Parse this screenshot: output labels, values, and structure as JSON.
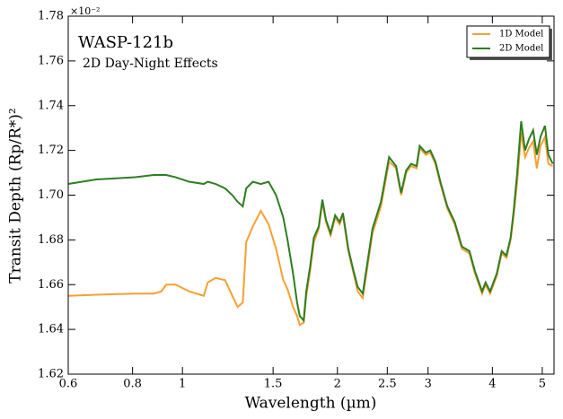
{
  "chart_data": {
    "type": "line",
    "title": "WASP-121b",
    "subtitle": "2D Day-Night Effects",
    "x_label": "Wavelength (µm)",
    "y_label": "Transit Depth (Rp/R*)²",
    "y_offset_label": "×10⁻²",
    "x_scale": "log",
    "xlim": [
      0.6,
      5.27
    ],
    "xticks": [
      0.6,
      0.8,
      1,
      1.5,
      2,
      2.5,
      3,
      4,
      5
    ],
    "ylim": [
      1.62,
      1.78
    ],
    "yticks": [
      1.62,
      1.64,
      1.66,
      1.68,
      {
        "value": 1.7,
        "label": "1.70"
      },
      1.72,
      1.74,
      1.76,
      1.78
    ],
    "legend_position": "upper right",
    "x": [
      0.6,
      0.68,
      0.81,
      0.88,
      0.91,
      0.93,
      0.97,
      1.03,
      1.1,
      1.12,
      1.16,
      1.21,
      1.25,
      1.28,
      1.31,
      1.33,
      1.37,
      1.42,
      1.47,
      1.52,
      1.57,
      1.6,
      1.64,
      1.67,
      1.69,
      1.72,
      1.74,
      1.77,
      1.8,
      1.84,
      1.87,
      1.9,
      1.94,
      1.98,
      2.02,
      2.05,
      2.1,
      2.15,
      2.19,
      2.24,
      2.34,
      2.43,
      2.52,
      2.6,
      2.66,
      2.72,
      2.78,
      2.85,
      2.89,
      2.97,
      3.03,
      3.1,
      3.17,
      3.27,
      3.38,
      3.49,
      3.61,
      3.7,
      3.82,
      3.88,
      3.96,
      4.08,
      4.17,
      4.26,
      4.34,
      4.4,
      4.47,
      4.55,
      4.63,
      4.71,
      4.8,
      4.88,
      4.96,
      5.06,
      5.14,
      5.24
    ],
    "series": [
      {
        "name": "1D Model",
        "color": "#f5a033",
        "values": [
          1.655,
          1.6555,
          1.656,
          1.656,
          1.657,
          1.66,
          1.66,
          1.657,
          1.655,
          1.661,
          1.663,
          1.662,
          1.655,
          1.65,
          1.652,
          1.679,
          1.686,
          1.693,
          1.687,
          1.676,
          1.662,
          1.658,
          1.65,
          1.646,
          1.642,
          1.643,
          1.655,
          1.666,
          1.679,
          1.685,
          1.697,
          1.688,
          1.682,
          1.69,
          1.687,
          1.691,
          1.675,
          1.665,
          1.657,
          1.654,
          1.683,
          1.695,
          1.715,
          1.712,
          1.7,
          1.71,
          1.713,
          1.712,
          1.721,
          1.718,
          1.719,
          1.714,
          1.705,
          1.694,
          1.687,
          1.676,
          1.674,
          1.665,
          1.656,
          1.66,
          1.656,
          1.664,
          1.674,
          1.672,
          1.68,
          1.691,
          1.706,
          1.728,
          1.717,
          1.721,
          1.724,
          1.712,
          1.722,
          1.726,
          1.714,
          1.713
        ]
      },
      {
        "name": "2D Model",
        "color": "#2e7d22",
        "values": [
          1.705,
          1.707,
          1.708,
          1.709,
          1.709,
          1.709,
          1.708,
          1.706,
          1.705,
          1.706,
          1.705,
          1.703,
          1.7,
          1.697,
          1.695,
          1.703,
          1.706,
          1.705,
          1.706,
          1.7,
          1.69,
          1.68,
          1.665,
          1.652,
          1.646,
          1.644,
          1.657,
          1.668,
          1.681,
          1.686,
          1.698,
          1.689,
          1.683,
          1.691,
          1.688,
          1.692,
          1.676,
          1.666,
          1.659,
          1.656,
          1.685,
          1.697,
          1.717,
          1.713,
          1.701,
          1.711,
          1.714,
          1.713,
          1.722,
          1.719,
          1.72,
          1.715,
          1.706,
          1.695,
          1.688,
          1.677,
          1.675,
          1.666,
          1.657,
          1.661,
          1.657,
          1.665,
          1.675,
          1.673,
          1.681,
          1.693,
          1.71,
          1.733,
          1.72,
          1.725,
          1.729,
          1.718,
          1.726,
          1.731,
          1.718,
          1.714
        ]
      }
    ]
  }
}
